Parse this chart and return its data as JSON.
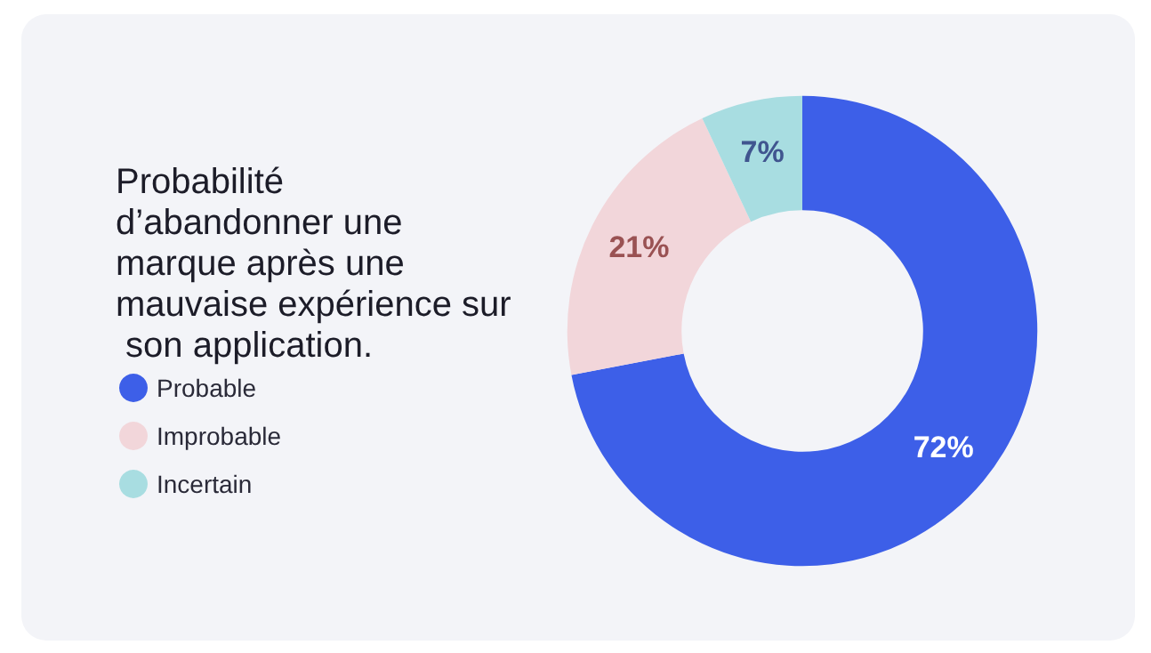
{
  "chart_data": {
    "type": "donut",
    "title": "Probabilité d’abandonner une marque après une mauvaise expérience sur son application.",
    "categories": [
      "Probable",
      "Improbable",
      "Incertain"
    ],
    "values": [
      72,
      21,
      7
    ],
    "colors": [
      "#3d5fe8",
      "#f2d6da",
      "#a8dde1"
    ],
    "value_labels": [
      "72%",
      "21%",
      "7%"
    ],
    "legend": "left"
  }
}
